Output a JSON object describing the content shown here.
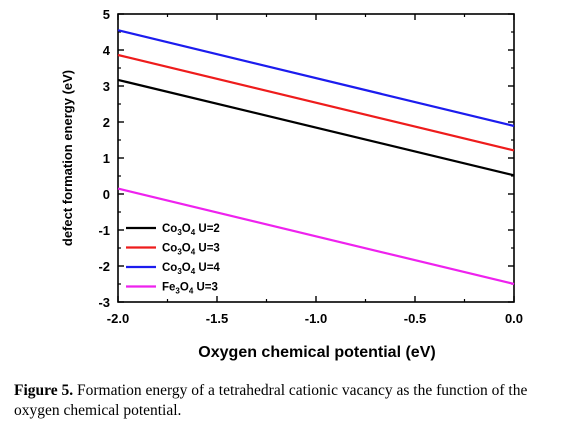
{
  "chart_data": {
    "type": "line",
    "xlabel": "Oxygen chemical potential (eV)",
    "ylabel": "defect formation energy (eV)",
    "xlim": [
      -2.0,
      0.0
    ],
    "ylim": [
      -3,
      5
    ],
    "xticks": [
      "-2.0",
      "-1.5",
      "-1.0",
      "-0.5",
      "0.0"
    ],
    "yticks": [
      "-3",
      "-2",
      "-1",
      "0",
      "1",
      "2",
      "3",
      "4",
      "5"
    ],
    "grid": false,
    "legend_position": "lower-left",
    "series": [
      {
        "name_parts": [
          "Co",
          "3",
          "O",
          "4",
          " U=2"
        ],
        "color": "#000000",
        "x": [
          -2.0,
          0.0
        ],
        "y": [
          3.17,
          0.52
        ]
      },
      {
        "name_parts": [
          "Co",
          "3",
          "O",
          "4",
          " U=3"
        ],
        "color": "#ee1c1c",
        "x": [
          -2.0,
          0.0
        ],
        "y": [
          3.86,
          1.21
        ]
      },
      {
        "name_parts": [
          "Co",
          "3",
          "O",
          "4",
          " U=4"
        ],
        "color": "#1c1cee",
        "x": [
          -2.0,
          0.0
        ],
        "y": [
          4.55,
          1.89
        ]
      },
      {
        "name_parts": [
          "Fe",
          "3",
          "O",
          "4",
          " U=3"
        ],
        "color": "#ee22ee",
        "x": [
          -2.0,
          0.0
        ],
        "y": [
          0.15,
          -2.5
        ]
      }
    ]
  },
  "caption": {
    "label": "Figure 5.",
    "text": " Formation energy of a tetrahedral cationic vacancy as the function of the oxygen chemical potential."
  }
}
